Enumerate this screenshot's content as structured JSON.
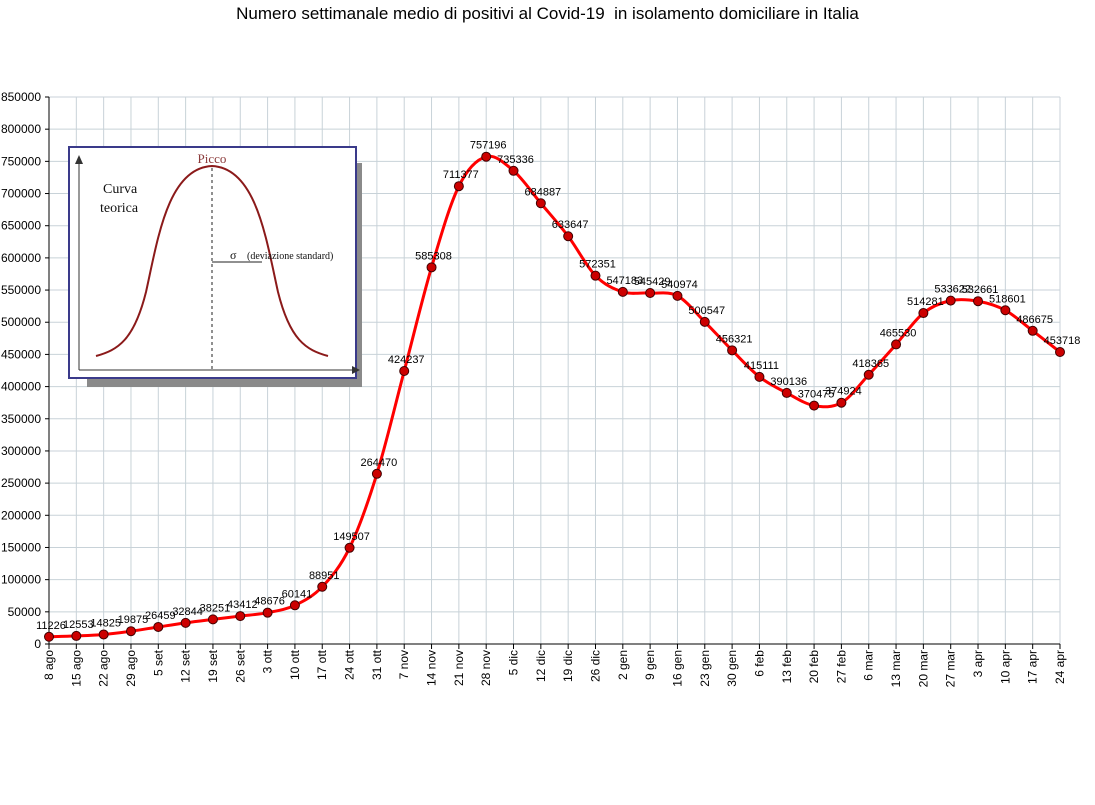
{
  "chart_data": {
    "type": "line",
    "title": "Numero settimanale medio di positivi al Covid-19  in isolamento domiciliare in Italia",
    "xlabel": "",
    "ylabel": "",
    "ylim": [
      0,
      850000
    ],
    "yticks": [
      0,
      50000,
      100000,
      150000,
      200000,
      250000,
      300000,
      350000,
      400000,
      450000,
      500000,
      550000,
      600000,
      650000,
      700000,
      750000,
      800000,
      850000
    ],
    "grid": true,
    "categories": [
      "8 ago",
      "15 ago",
      "22 ago",
      "29 ago",
      "5 set",
      "12 set",
      "19 set",
      "26 set",
      "3 ott",
      "10 ott",
      "17 ott",
      "24 ott",
      "31 ott",
      "7 nov",
      "14 nov",
      "21 nov",
      "28 nov",
      "5 dic",
      "12 dic",
      "19 dic",
      "26 dic",
      "2 gen",
      "9 gen",
      "16 gen",
      "23 gen",
      "30 gen",
      "6 feb",
      "13 feb",
      "20 feb",
      "27 feb",
      "6 mar",
      "13 mar",
      "20 mar",
      "27 mar",
      "3 apr",
      "10 apr",
      "17 apr",
      "24 apr"
    ],
    "series": [
      {
        "color": "#ff0000",
        "marker_color": "#cc0000",
        "values": [
          11226,
          12553,
          14825,
          19875,
          26459,
          32844,
          38251,
          43412,
          48676,
          60141,
          88951,
          149507,
          264470,
          424237,
          585308,
          711377,
          757196,
          735336,
          684887,
          633647,
          572351,
          547183,
          545429,
          540974,
          500547,
          456321,
          415111,
          390136,
          370475,
          374924,
          418365,
          465530,
          514281,
          533622,
          532661,
          518601,
          486675,
          453718
        ],
        "labels": [
          "11226",
          "12553",
          "14825",
          "19875",
          "26459",
          "32844",
          "38251",
          "43412",
          "48676",
          "60141",
          "88951",
          "149507",
          "264470",
          "424237",
          "585308",
          "711377",
          "757196",
          "735336",
          "684887",
          "633647",
          "572351",
          "547183",
          "545429",
          "540974",
          "500547",
          "456321",
          "415111",
          "390136",
          "370475",
          "374924",
          "418365",
          "465530",
          "514281",
          "533622",
          "532661",
          "518601",
          "486675",
          "453718"
        ]
      }
    ],
    "inset": {
      "peak_label": "Picco",
      "curve_label_line1": "Curva",
      "curve_label_line2": "teorica",
      "sigma_symbol": "σ",
      "sigma_label": "(deviazione standard)"
    }
  }
}
